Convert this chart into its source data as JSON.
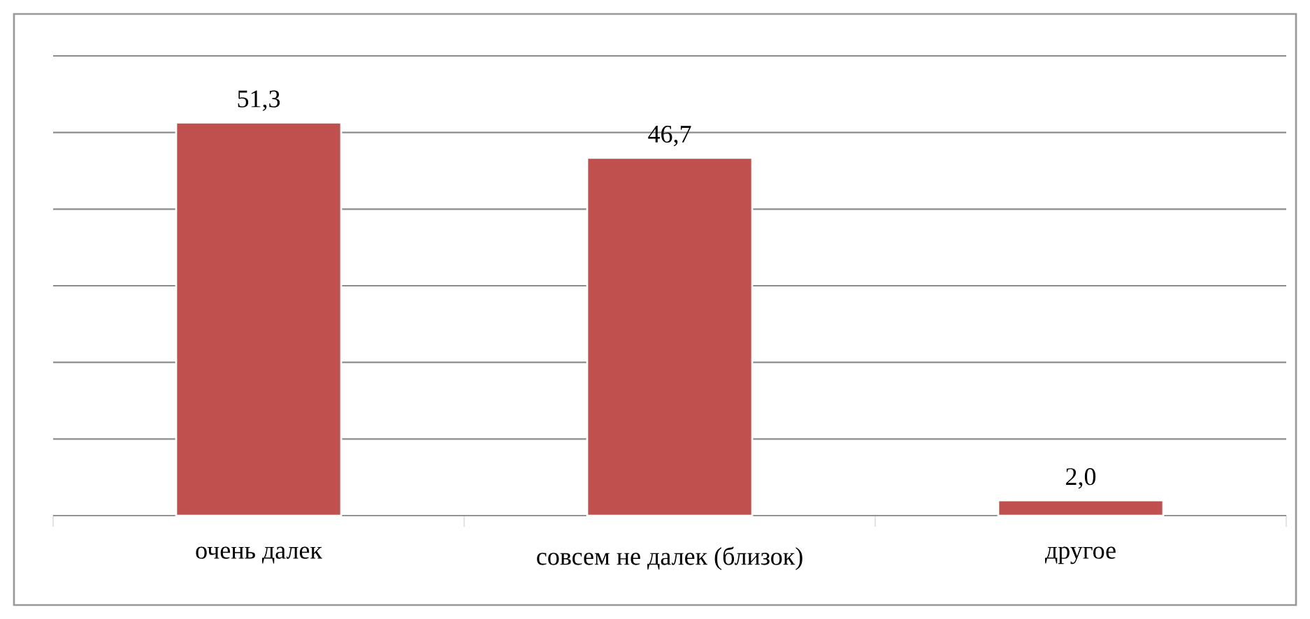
{
  "chart_data": {
    "type": "bar",
    "categories": [
      "очень далек",
      "совсем не далек (близок)",
      "другое"
    ],
    "values": [
      51.3,
      46.7,
      2.0
    ],
    "value_labels": [
      "51,3",
      "46,7",
      "2,0"
    ],
    "color": "#c0504d",
    "ylim": [
      0,
      60
    ],
    "yticks": [
      {
        "value": 0,
        "label": null
      },
      {
        "value": 10,
        "label": null
      },
      {
        "value": 20,
        "label": null
      },
      {
        "value": 30,
        "label": null
      },
      {
        "value": 40,
        "label": null
      },
      {
        "value": 50,
        "label": null
      },
      {
        "value": 60,
        "label": null
      }
    ],
    "grid": "y",
    "tick_labels": "x"
  }
}
